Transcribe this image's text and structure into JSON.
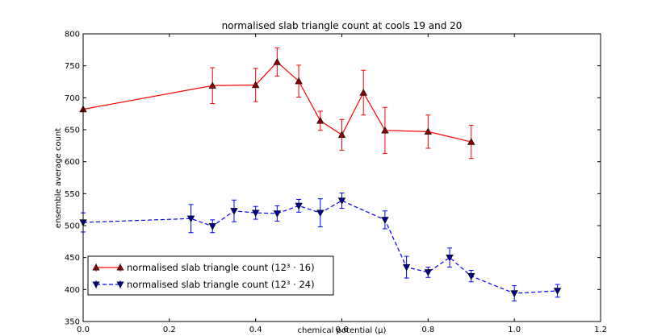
{
  "chart_data": {
    "type": "line",
    "title": "normalised slab triangle count at cools 19 and 20",
    "xlabel": "chemical potential (μ)",
    "ylabel": "ensemble average count",
    "xlim": [
      0.0,
      1.2
    ],
    "ylim": [
      350,
      800
    ],
    "xticks": [
      "0.0",
      "0.2",
      "0.4",
      "0.6",
      "0.8",
      "1.0",
      "1.2"
    ],
    "yticks": [
      "350",
      "400",
      "450",
      "500",
      "550",
      "600",
      "650",
      "700",
      "750",
      "800"
    ],
    "grid": false,
    "legend_position": "lower-left",
    "series": [
      {
        "name": "normalised slab triangle count (12³ · 16)",
        "color": "#ff0000",
        "marker": "triangle-up",
        "line_style": "solid",
        "x": [
          0.0,
          0.3,
          0.4,
          0.45,
          0.5,
          0.55,
          0.6,
          0.65,
          0.7,
          0.8,
          0.9
        ],
        "y": [
          682,
          719,
          720,
          756,
          726,
          664,
          642,
          708,
          649,
          647,
          631
        ],
        "err": [
          0,
          28,
          26,
          22,
          25,
          15,
          24,
          35,
          36,
          26,
          26
        ]
      },
      {
        "name": "normalised slab triangle count (12³ · 24)",
        "color": "#0000ff",
        "marker": "triangle-down",
        "line_style": "dashed",
        "x": [
          0.0,
          0.25,
          0.3,
          0.35,
          0.4,
          0.45,
          0.5,
          0.55,
          0.6,
          0.7,
          0.75,
          0.8,
          0.85,
          0.9,
          1.0,
          1.1
        ],
        "y": [
          505,
          511,
          499,
          523,
          520,
          519,
          531,
          520,
          539,
          509,
          435,
          427,
          450,
          421,
          394,
          398
        ],
        "err": [
          15,
          22,
          10,
          17,
          10,
          12,
          10,
          22,
          12,
          14,
          17,
          8,
          15,
          9,
          12,
          10
        ]
      }
    ]
  }
}
